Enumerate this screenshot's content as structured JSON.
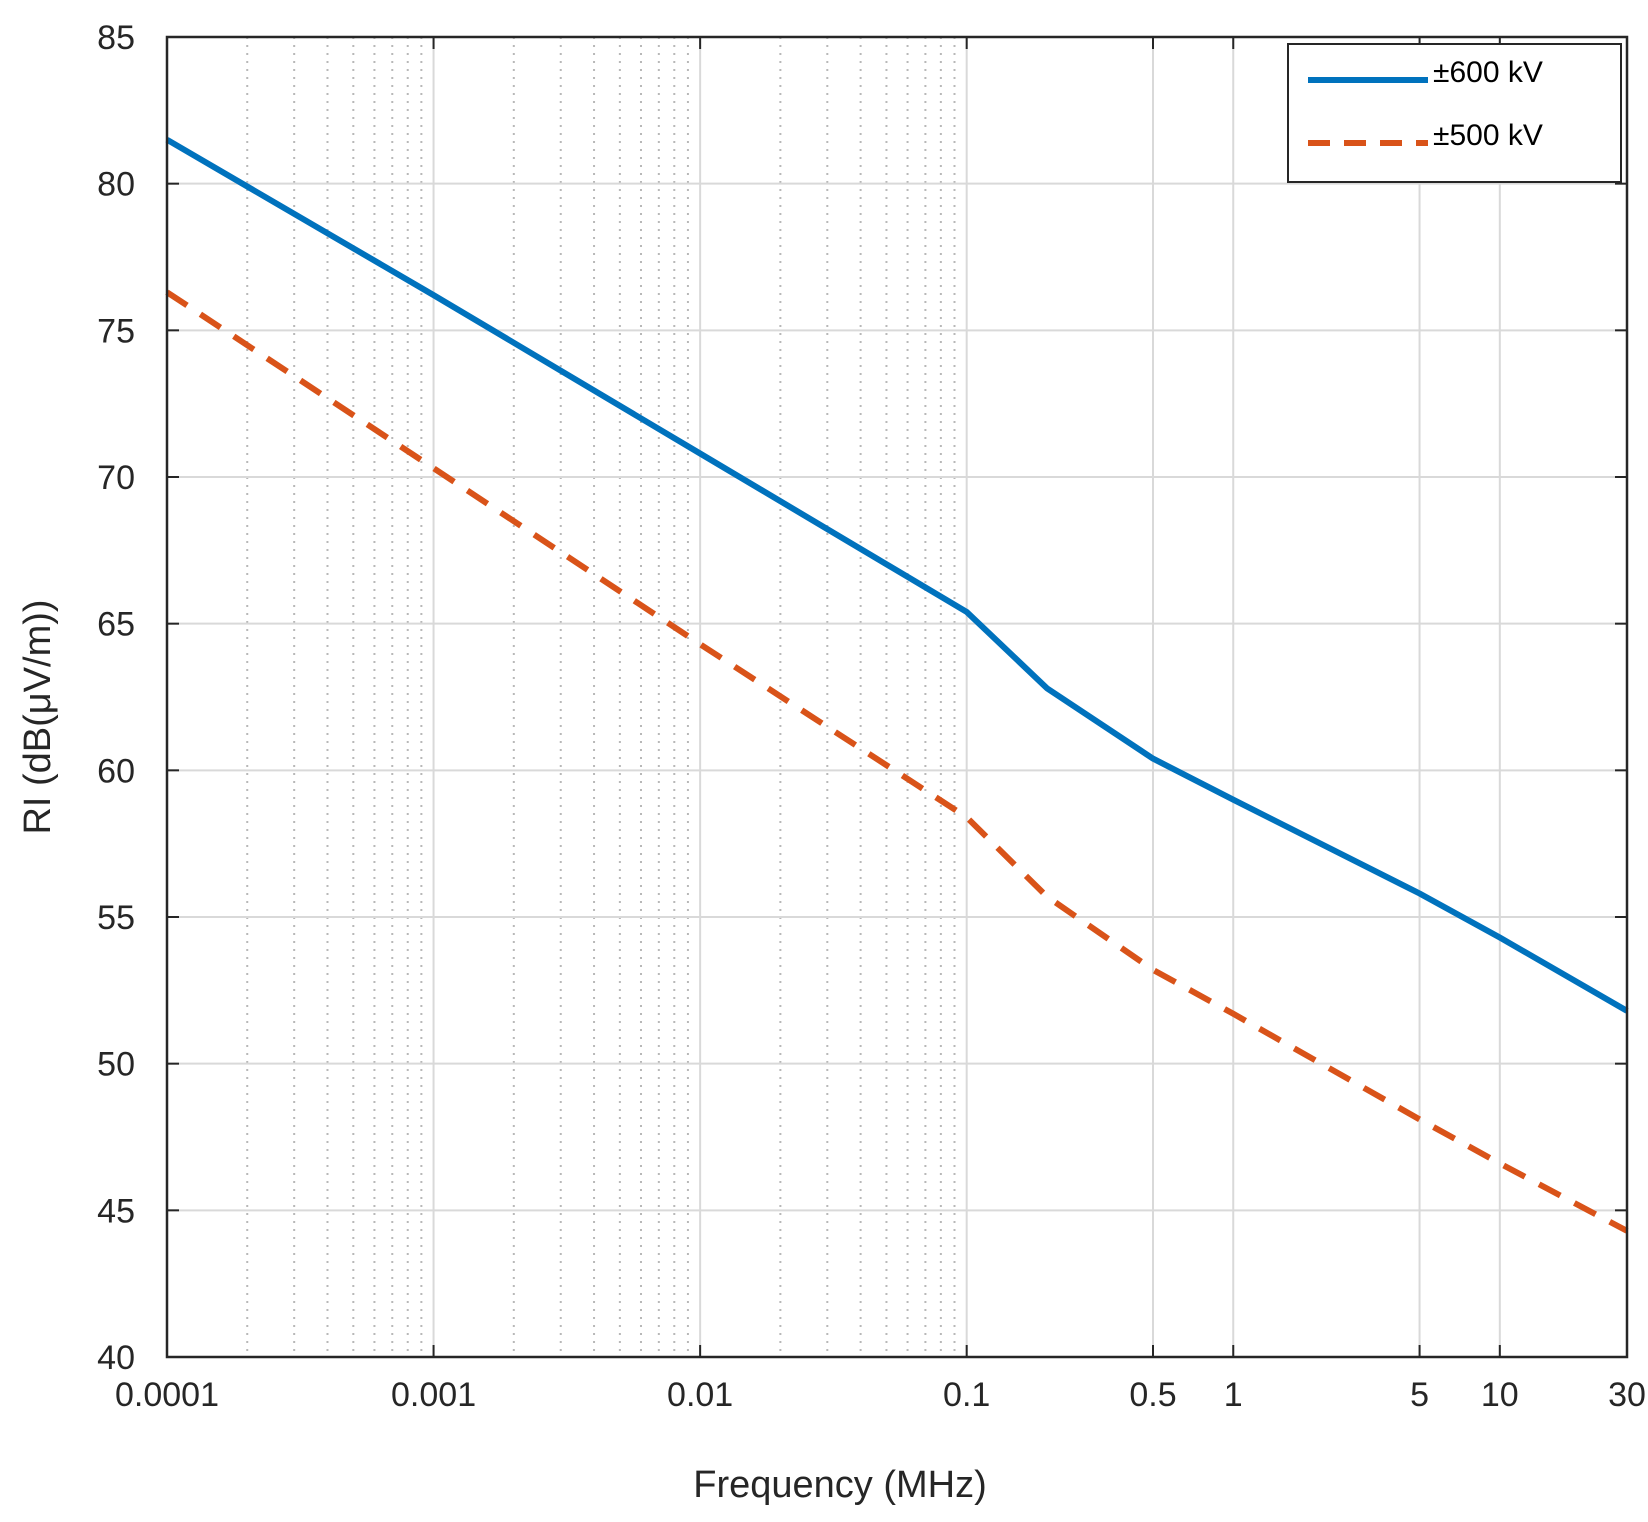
{
  "chart_data": {
    "type": "line",
    "title": "",
    "xlabel": "Frequency (MHz)",
    "ylabel": "RI (dB(μV/m))",
    "xscale": "log",
    "xlim": [
      0.0001,
      30
    ],
    "ylim": [
      40,
      85
    ],
    "grid": true,
    "legend_position": "top-right",
    "xtick_values": [
      0.0001,
      0.001,
      0.01,
      0.1,
      0.5,
      1,
      5,
      10,
      30
    ],
    "xtick_labels": [
      "0.0001",
      "0.001",
      "0.01",
      "0.1",
      "0.5",
      "1",
      "5",
      "10",
      "30"
    ],
    "ytick_values": [
      40,
      45,
      50,
      55,
      60,
      65,
      70,
      75,
      80,
      85
    ],
    "ytick_labels": [
      "40",
      "45",
      "50",
      "55",
      "60",
      "65",
      "70",
      "75",
      "80",
      "85"
    ],
    "x": [
      0.0001,
      0.001,
      0.01,
      0.1,
      0.2,
      0.5,
      1,
      5,
      10,
      30
    ],
    "series": [
      {
        "name": "±600 kV",
        "color": "#0072BD",
        "style": "solid",
        "values": [
          81.5,
          76.2,
          70.8,
          65.4,
          62.8,
          60.4,
          59.0,
          55.8,
          54.3,
          51.8
        ]
      },
      {
        "name": "±500 kV",
        "color": "#D95319",
        "style": "dashed",
        "values": [
          76.3,
          70.3,
          64.3,
          58.4,
          55.7,
          53.2,
          51.7,
          48.1,
          46.6,
          44.3
        ]
      }
    ]
  }
}
